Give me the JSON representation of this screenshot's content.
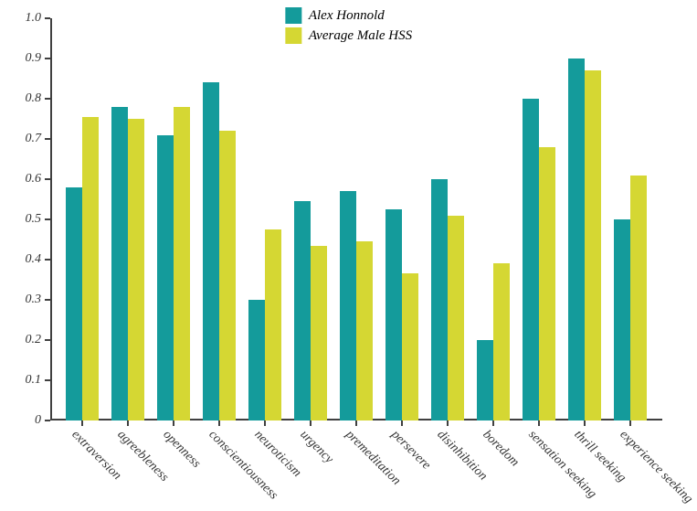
{
  "chart": {
    "type": "bar",
    "background_color": "#ffffff",
    "axis_color": "#404040",
    "legend": {
      "items": [
        {
          "label": "Alex Honnold",
          "color": "#149b9b"
        },
        {
          "label": "Average Male HSS",
          "color": "#d5d733"
        }
      ],
      "font_style": "italic",
      "font_size": 15
    },
    "y_axis": {
      "min": 0,
      "max": 1.0,
      "ticks": [
        0,
        0.1,
        0.2,
        0.3,
        0.4,
        0.5,
        0.6,
        0.7,
        0.8,
        0.9,
        1.0
      ],
      "tick_labels": [
        "0",
        "0.1",
        "0.2",
        "0.3",
        "0.4",
        "0.5",
        "0.6",
        "0.7",
        "0.8",
        "0.9",
        "1.0"
      ],
      "label_font_style": "italic",
      "label_font_size": 14
    },
    "x_axis": {
      "categories": [
        "extraversion",
        "agreebleness",
        "openness",
        "conscientiousness",
        "neuroticism",
        "urgency",
        "premeditation",
        "persevere",
        "disinhibition",
        "boredom",
        "sensation seeking",
        "thrill seeking",
        "experience seeking"
      ],
      "label_font_style": "italic",
      "label_font_size": 14,
      "label_rotation": 45
    },
    "series": [
      {
        "name": "Alex Honnold",
        "color": "#149b9b",
        "values": [
          0.58,
          0.78,
          0.71,
          0.84,
          0.3,
          0.545,
          0.57,
          0.525,
          0.6,
          0.2,
          0.8,
          0.9,
          0.5
        ]
      },
      {
        "name": "Average Male HSS",
        "color": "#d5d733",
        "values": [
          0.755,
          0.75,
          0.78,
          0.72,
          0.475,
          0.435,
          0.445,
          0.365,
          0.51,
          0.39,
          0.68,
          0.87,
          0.61
        ]
      }
    ],
    "bar_width_ratio": 0.36,
    "group_gap_ratio": 0.28
  }
}
